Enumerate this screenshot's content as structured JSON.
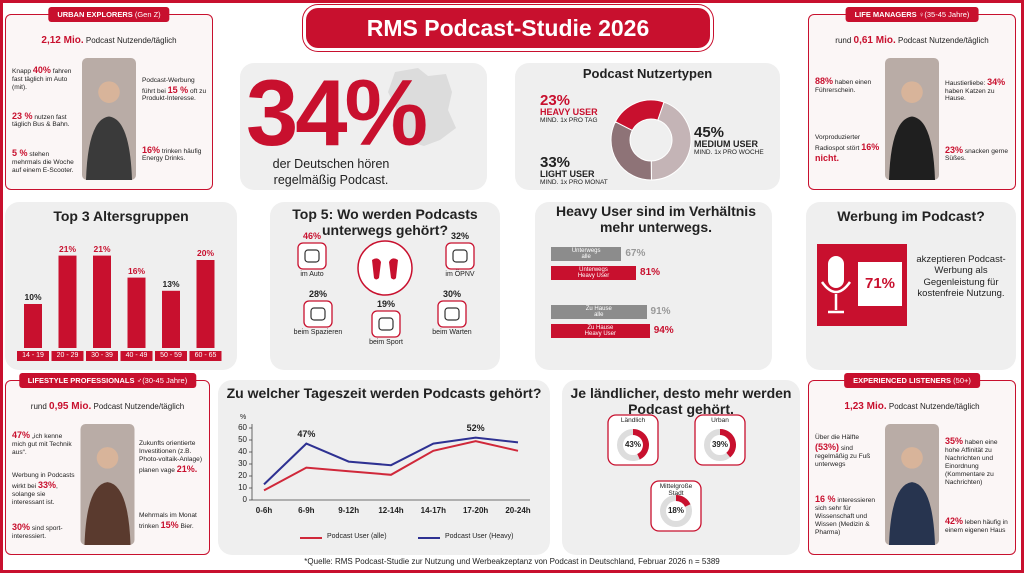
{
  "title": "RMS Podcast-Studie 2026",
  "source": "*Quelle: RMS Podcast-Studie zur Nutzung und Werbeakzeptanz von Podcast in Deutschland, Februar 2026 n = 5389",
  "personas": [
    {
      "tag": "URBAN EXPLORERS",
      "tag_note": "(Gen Z)",
      "reach": {
        "strong": "2,12 Mio.",
        "post": " Podcast Nutzende/täglich"
      },
      "facts": [
        {
          "pre": "Knapp ",
          "strong": "40%",
          "post": " fahren fast täglich im Auto (mit)."
        },
        {
          "strong": "23 %",
          "post": " nutzen fast täglich Bus & Bahn."
        },
        {
          "strong": "5 %",
          "post": " stehen mehrmals die Woche auf einem E-Scooter."
        },
        {
          "pre": "Podcast-Werbung führt bei ",
          "strong": "15 %",
          "post": " oft zu Produkt-Interesse."
        },
        {
          "strong": "16%",
          "post": " trinken häufig Energy Drinks."
        }
      ]
    },
    {
      "tag": "LIFE MANAGERS",
      "tag_note": "♀(35-45 Jahre)",
      "reach": {
        "pre": "rund ",
        "strong": "0,61 Mio.",
        "post": " Podcast Nutzende/täglich"
      },
      "facts": [
        {
          "strong": "88%",
          "post": " haben einen Führerschein."
        },
        {
          "pre": "Vorproduzierter Radiospot stört ",
          "strong": "16% nicht."
        },
        {
          "pre": "Haustierliebe: ",
          "strong": "34%",
          "post": " haben Katzen zu Hause."
        },
        {
          "strong": "23%",
          "post": " snacken gerne Süßes."
        }
      ]
    },
    {
      "tag": "LIFESTYLE PROFESSIONALS",
      "tag_note": "♂(30-45 Jahre)",
      "reach": {
        "pre": "rund ",
        "strong": "0,95 Mio.",
        "post": " Podcast Nutzende/täglich"
      },
      "facts": [
        {
          "strong": "47%",
          "post": " „ich kenne mich gut mit Technik aus“."
        },
        {
          "pre": "Werbung in Podcasts wirkt bei ",
          "strong": "33%",
          "post": ", solange sie interessant ist."
        },
        {
          "strong": "30%",
          "post": " sind sport-interessiert."
        },
        {
          "pre": "Zukunfts orientierte Investitionen (z.B. Photo-voltaik-Anlage) planen vage ",
          "strong": "21%."
        },
        {
          "pre": "Mehrmals im Monat trinken ",
          "strong": "15%",
          "post": " Bier."
        }
      ]
    },
    {
      "tag": "EXPERIENCED LISTENERS",
      "tag_note": "(50+)",
      "reach": {
        "strong": "1,23 Mio.",
        "post": " Podcast Nutzende/täglich"
      },
      "facts": [
        {
          "pre": "Über die Hälfte ",
          "strong": "(53%)",
          "post": " sind regelmäßig zu Fuß unterwegs"
        },
        {
          "strong": "16 %",
          "post": " interessieren sich sehr für Wissenschaft und Wissen (Medizin & Pharma)"
        },
        {
          "strong": "35%",
          "post": " haben eine hohe Affinität zu Nachrichten und Einordnung (Kommentare zu Nachrichten)"
        },
        {
          "strong": "42%",
          "post": " leben häufig in einem eigenen Haus"
        }
      ]
    }
  ],
  "hero": {
    "figure": "34%",
    "text": "der Deutschen hören regelmäßig Podcast."
  },
  "places": {
    "title": "Top 5: Wo werden Podcasts unterwegs gehört?",
    "items": [
      {
        "value": "46%",
        "label": "im Auto"
      },
      {
        "value": "32%",
        "label": "im ÖPNV"
      },
      {
        "value": "28%",
        "label": "beim Spazieren"
      },
      {
        "value": "19%",
        "label": "beim Sport"
      },
      {
        "value": "30%",
        "label": "beim Warten"
      }
    ]
  },
  "ad": {
    "title": "Werbung im Podcast?",
    "figure": "71%",
    "text": "akzeptieren Podcast-Werbung als Gegenleistung für kostenfreie Nutzung."
  },
  "chart_data": [
    {
      "type": "pie",
      "title": "Podcast Nutzertypen",
      "categories": [
        "HEAVY USER",
        "MEDIUM USER",
        "LIGHT USER"
      ],
      "notes": [
        "MIND. 1x PRO TAG",
        "MIND. 1x PRO WOCHE",
        "MIND. 1x PRO MONAT"
      ],
      "values": [
        23,
        45,
        33
      ],
      "value_labels": [
        "23%",
        "45%",
        "33%"
      ],
      "colors": [
        "#c8102e",
        "#c4b4b6",
        "#8e7377"
      ]
    },
    {
      "type": "bar",
      "title": "Top 3 Altersgruppen",
      "categories": [
        "14 - 19",
        "20 - 29",
        "30 - 39",
        "40 - 49",
        "50 - 59",
        "60 - 65"
      ],
      "values": [
        10,
        21,
        21,
        16,
        13,
        20
      ],
      "value_labels": [
        "10%",
        "21%",
        "21%",
        "16%",
        "13%",
        "20%"
      ],
      "color": "#c8102e"
    },
    {
      "type": "hbar",
      "title": "Heavy User sind im Verhältnis mehr unterwegs.",
      "categories": [
        "Unterwegs\nalle",
        "Unterwegs\nHeavy User",
        "Zu Hause\nalle",
        "Zu Hause\nHeavy User"
      ],
      "values": [
        67,
        81,
        91,
        94
      ],
      "value_labels": [
        "67%",
        "81%",
        "91%",
        "94%"
      ],
      "colors": [
        "#8c8c8c",
        "#c8102e",
        "#8c8c8c",
        "#c8102e"
      ]
    },
    {
      "type": "line",
      "title": "Zu welcher Tageszeit werden Podcasts gehört?",
      "y_label": "%",
      "categories": [
        "0-6h",
        "6-9h",
        "9-12h",
        "12-14h",
        "14-17h",
        "17-20h",
        "20-24h"
      ],
      "ylim": [
        0,
        60
      ],
      "yticks": [
        0,
        10,
        20,
        30,
        40,
        50,
        60
      ],
      "grid": false,
      "legend": "bottom",
      "series": [
        {
          "name": "Podcast User (alle)",
          "color": "#d0283a",
          "values": [
            8,
            27,
            24,
            21,
            41,
            49,
            41
          ]
        },
        {
          "name": "Podcast User (Heavy)",
          "color": "#2e3192",
          "values": [
            13,
            47,
            32,
            29,
            47,
            52,
            48
          ],
          "value_labels": [
            null,
            "47%",
            null,
            null,
            null,
            "52%",
            null
          ]
        }
      ]
    },
    {
      "type": "gauges",
      "title": "Je ländlicher, desto mehr werden Podcast gehört.",
      "categories": [
        "Ländlich",
        "Urban",
        "Mittelgroße\nStadt"
      ],
      "values": [
        43,
        39,
        18
      ],
      "value_labels": [
        "43%",
        "39%",
        "18%"
      ],
      "color": "#c8102e"
    }
  ]
}
